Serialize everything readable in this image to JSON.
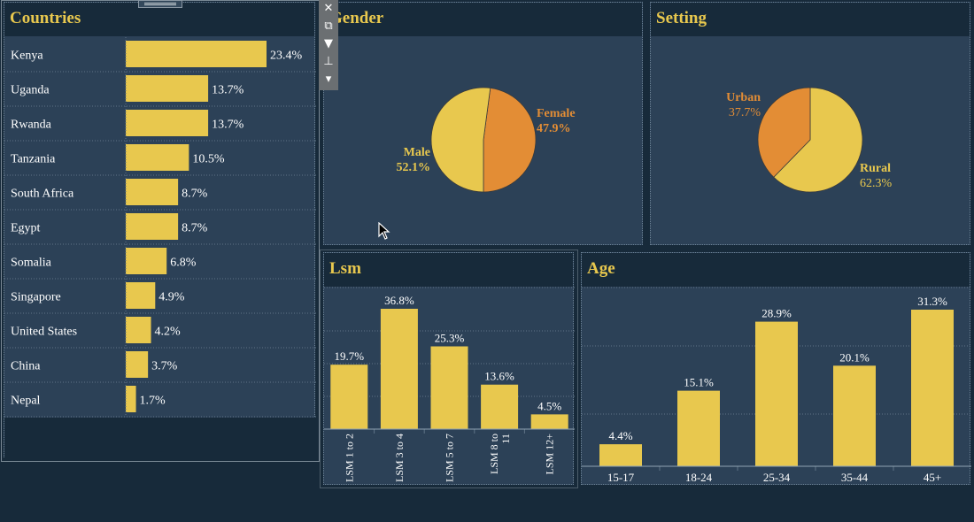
{
  "colors": {
    "yellow": "#e8c84e",
    "orange": "#e38d35",
    "panel": "#2c4157",
    "header": "#172a3a",
    "text": "#ffffff",
    "grid": "#5f7487"
  },
  "toolbar": {
    "icons": [
      "close-icon",
      "open-in-new-icon",
      "filter-icon",
      "pin-icon",
      "more-options-icon"
    ],
    "glyphs": {
      "close": "✕",
      "open": "⧉",
      "filter": "▼",
      "pin": "⊥",
      "more": "▾"
    }
  },
  "countries": {
    "title": "Countries"
  },
  "gender": {
    "title": "Gender"
  },
  "setting": {
    "title": "Setting"
  },
  "lsm": {
    "title": "Lsm"
  },
  "age": {
    "title": "Age"
  },
  "chart_data": [
    {
      "id": "countries",
      "type": "bar",
      "orientation": "horizontal",
      "title": "Countries",
      "categories": [
        "Kenya",
        "Uganda",
        "Rwanda",
        "Tanzania",
        "South Africa",
        "Egypt",
        "Somalia",
        "Singapore",
        "United States",
        "China",
        "Nepal"
      ],
      "values": [
        23.4,
        13.7,
        13.7,
        10.5,
        8.7,
        8.7,
        6.8,
        4.9,
        4.2,
        3.7,
        1.7
      ],
      "labels": [
        "23.4%",
        "13.7%",
        "13.7%",
        "10.5%",
        "8.7%",
        "8.7%",
        "6.8%",
        "4.9%",
        "4.2%",
        "3.7%",
        "1.7%"
      ]
    },
    {
      "id": "gender",
      "type": "pie",
      "title": "Gender",
      "slices": [
        {
          "label": "Female",
          "pct": "47.9%",
          "value": 47.9,
          "color": "#e38d35"
        },
        {
          "label": "Male",
          "pct": "52.1%",
          "value": 52.1,
          "color": "#e8c84e"
        }
      ]
    },
    {
      "id": "setting",
      "type": "pie",
      "title": "Setting",
      "slices": [
        {
          "label": "Rural",
          "pct": "62.3%",
          "value": 62.3,
          "color": "#e8c84e"
        },
        {
          "label": "Urban",
          "pct": "37.7%",
          "value": 37.7,
          "color": "#e38d35"
        }
      ]
    },
    {
      "id": "lsm",
      "type": "bar",
      "title": "Lsm",
      "categories": [
        "LSM 1 to 2",
        "LSM 3 to 4",
        "LSM 5 to 7",
        "LSM 8 to 11",
        "LSM 12+"
      ],
      "values": [
        19.7,
        36.8,
        25.3,
        13.6,
        4.5
      ],
      "labels": [
        "19.7%",
        "36.8%",
        "25.3%",
        "13.6%",
        "4.5%"
      ]
    },
    {
      "id": "age",
      "type": "bar",
      "title": "Age",
      "categories": [
        "15-17",
        "18-24",
        "25-34",
        "35-44",
        "45+"
      ],
      "values": [
        4.4,
        15.1,
        28.9,
        20.1,
        31.3
      ],
      "labels": [
        "4.4%",
        "15.1%",
        "28.9%",
        "20.1%",
        "31.3%"
      ]
    }
  ]
}
